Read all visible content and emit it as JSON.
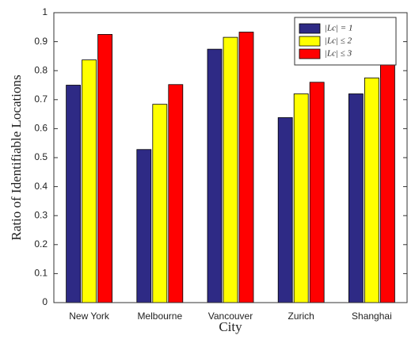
{
  "chart_data": {
    "type": "bar",
    "xlabel": "City",
    "ylabel": "Ratio of Identifiable Locations",
    "categories": [
      "New York",
      "Melbourne",
      "Vancouver",
      "Zurich",
      "Shanghai"
    ],
    "series": [
      {
        "name": "|Lc| = 1",
        "color": "#2e2a85",
        "values": [
          0.75,
          0.528,
          0.874,
          0.638,
          0.72
        ]
      },
      {
        "name": "|Lc| ≤ 2",
        "color": "#ffff00",
        "values": [
          0.837,
          0.684,
          0.915,
          0.72,
          0.775
        ]
      },
      {
        "name": "|Lc| ≤ 3",
        "color": "#ff0000",
        "values": [
          0.925,
          0.752,
          0.933,
          0.76,
          0.848
        ]
      }
    ],
    "ylim": [
      0,
      1
    ],
    "yticks": [
      0,
      0.1,
      0.2,
      0.3,
      0.4,
      0.5,
      0.6,
      0.7,
      0.8,
      0.9,
      1
    ],
    "grid": false,
    "legend": "upper right"
  }
}
